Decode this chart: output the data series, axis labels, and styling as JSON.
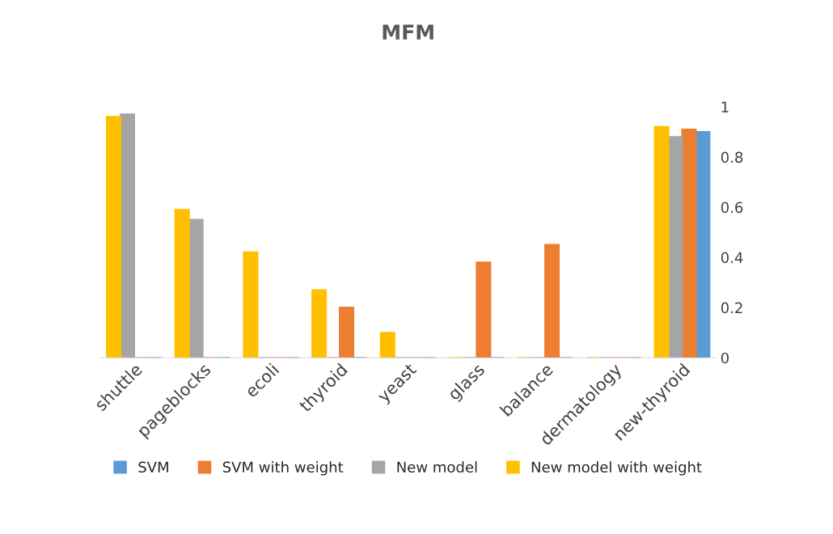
{
  "chart_data": {
    "type": "bar",
    "title": "MFM",
    "categories": [
      "shuttle",
      "pageblocks",
      "ecoli",
      "thyroid",
      "yeast",
      "glass",
      "balance",
      "dermatology",
      "new-thyroid"
    ],
    "series": [
      {
        "name": "SVM",
        "color": "#5b9bd5",
        "values": [
          0,
          0,
          0,
          0,
          0,
          0,
          0,
          0,
          0.9
        ]
      },
      {
        "name": "SVM with weight",
        "color": "#ed7d31",
        "values": [
          0,
          0,
          0,
          0.2,
          0,
          0.38,
          0.45,
          0,
          0.91
        ]
      },
      {
        "name": "New model",
        "color": "#a5a5a5",
        "values": [
          0.97,
          0.55,
          0,
          0,
          0,
          0,
          0,
          0,
          0.88
        ]
      },
      {
        "name": "New model with weight",
        "color": "#ffc000",
        "values": [
          0.96,
          0.59,
          0.42,
          0.27,
          0.1,
          0,
          0,
          0,
          0.92
        ]
      }
    ],
    "ylim": [
      0,
      1
    ],
    "yticks": [
      0,
      0.2,
      0.4,
      0.6,
      0.8,
      1
    ],
    "grid": false,
    "legend": "bottom"
  }
}
